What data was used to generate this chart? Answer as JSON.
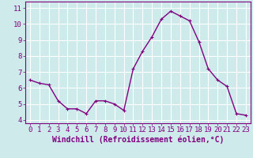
{
  "x": [
    0,
    1,
    2,
    3,
    4,
    5,
    6,
    7,
    8,
    9,
    10,
    11,
    12,
    13,
    14,
    15,
    16,
    17,
    18,
    19,
    20,
    21,
    22,
    23
  ],
  "y": [
    6.5,
    6.3,
    6.2,
    5.2,
    4.7,
    4.7,
    4.4,
    5.2,
    5.2,
    5.0,
    4.6,
    7.2,
    8.3,
    9.2,
    10.3,
    10.8,
    10.5,
    10.2,
    8.9,
    7.2,
    6.5,
    6.1,
    4.4,
    4.3
  ],
  "line_color": "#800080",
  "marker": "+",
  "marker_size": 3,
  "xlabel": "Windchill (Refroidissement éolien,°C)",
  "xlim": [
    -0.5,
    23.5
  ],
  "ylim": [
    3.8,
    11.4
  ],
  "xticks": [
    0,
    1,
    2,
    3,
    4,
    5,
    6,
    7,
    8,
    9,
    10,
    11,
    12,
    13,
    14,
    15,
    16,
    17,
    18,
    19,
    20,
    21,
    22,
    23
  ],
  "yticks": [
    4,
    5,
    6,
    7,
    8,
    9,
    10,
    11
  ],
  "bg_color": "#ceeaea",
  "grid_color": "#ffffff",
  "axis_color": "#800080",
  "tick_color": "#800080",
  "label_color": "#800080",
  "xlabel_fontsize": 7,
  "tick_fontsize": 6.5,
  "line_width": 1.0,
  "marker_edge_width": 0.8
}
